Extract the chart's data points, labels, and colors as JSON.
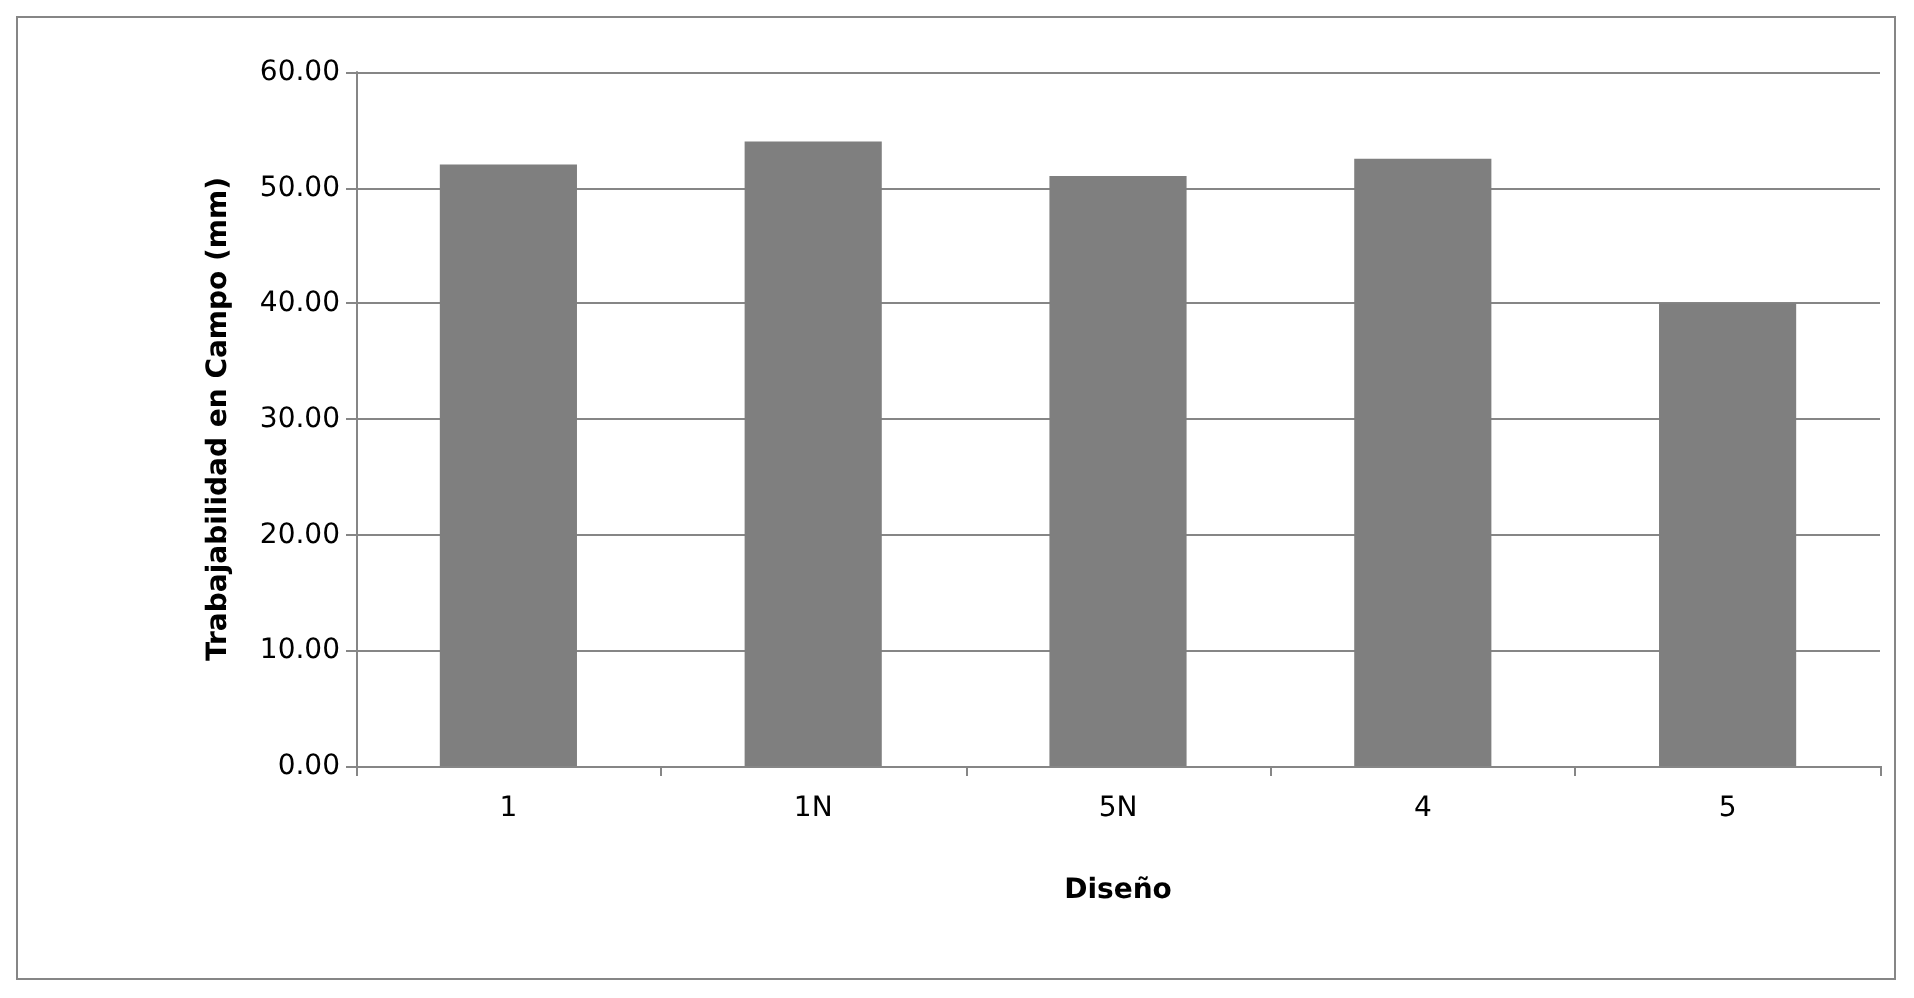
{
  "chart_data": {
    "type": "bar",
    "xlabel": "Diseño",
    "ylabel": "Trabajabilidad en Campo (mm)",
    "categories": [
      "1",
      "1N",
      "5N",
      "4",
      "5"
    ],
    "values": [
      52,
      54,
      51,
      52.5,
      40
    ],
    "color": "#7f7f7f",
    "ylim": [
      0,
      60
    ],
    "yticks": [
      {
        "value": 0,
        "label": "0.00"
      },
      {
        "value": 10,
        "label": "10.00"
      },
      {
        "value": 20,
        "label": "20.00"
      },
      {
        "value": 30,
        "label": "30.00"
      },
      {
        "value": 40,
        "label": "40.00"
      },
      {
        "value": 50,
        "label": "50.00"
      },
      {
        "value": 60,
        "label": "60.00"
      }
    ],
    "grid": "y"
  }
}
